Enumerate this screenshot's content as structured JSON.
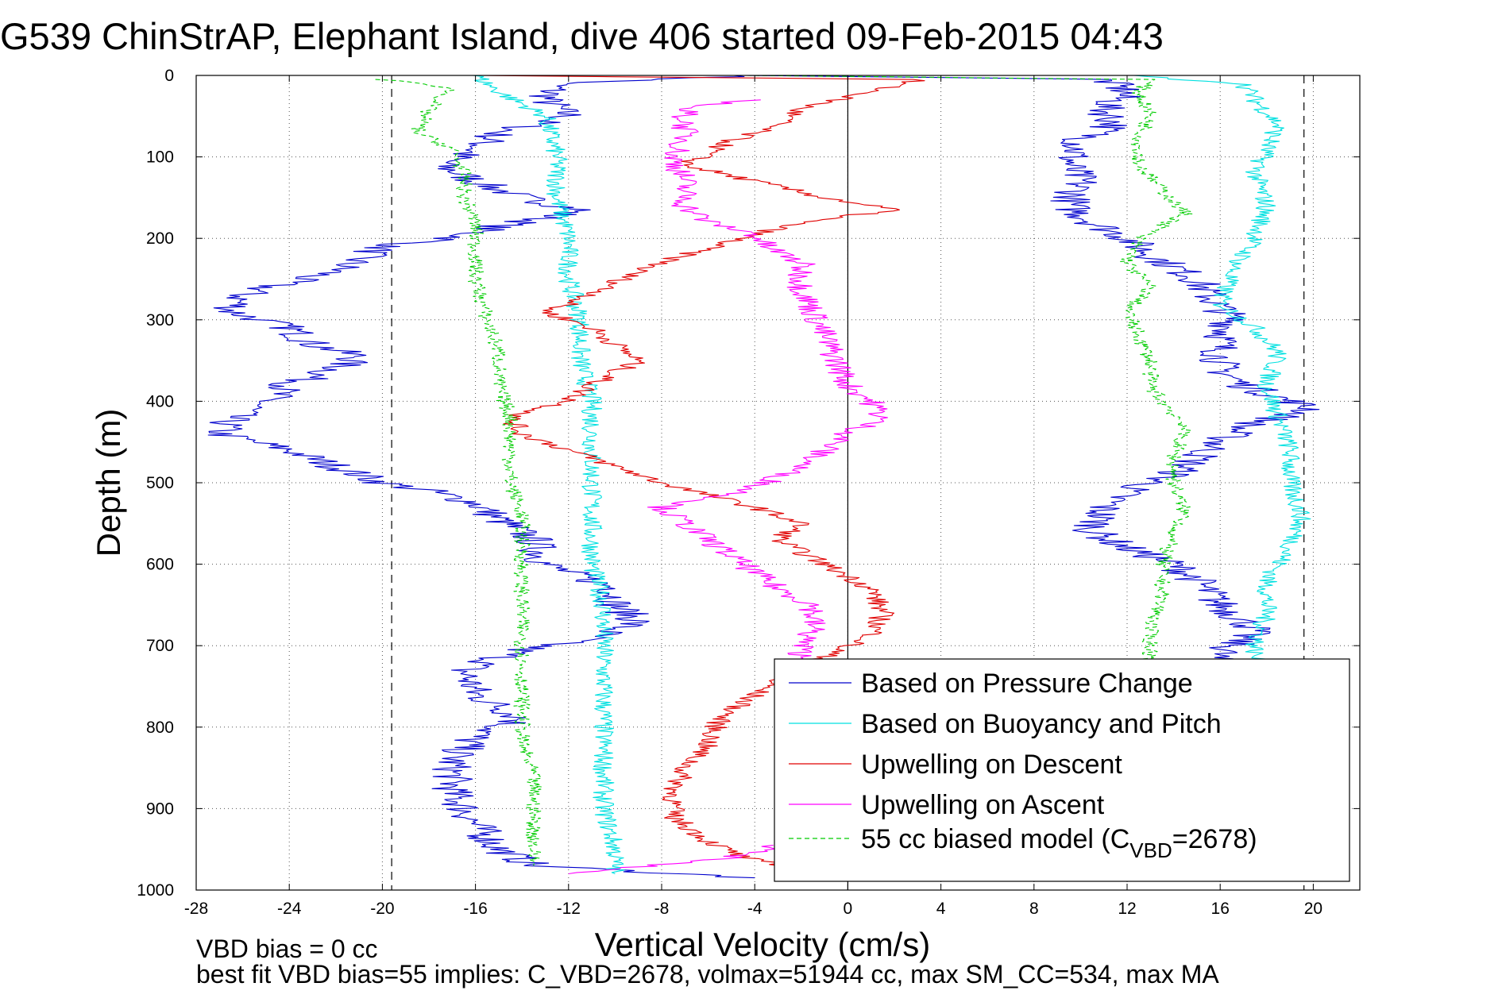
{
  "chart_data": {
    "type": "line",
    "title": "G539 ChinStrAP, Elephant Island, dive 406 started 09-Feb-2015 04:43",
    "xlabel": "Vertical Velocity (cm/s)",
    "ylabel": "Depth (m)",
    "xlim": [
      -28,
      22
    ],
    "ylim": [
      0,
      1000
    ],
    "y_reversed": true,
    "grid": "dotted",
    "x_ticks": [
      -28,
      -24,
      -20,
      -16,
      -12,
      -8,
      -4,
      0,
      4,
      8,
      12,
      16,
      20
    ],
    "y_ticks": [
      0,
      100,
      200,
      300,
      400,
      500,
      600,
      700,
      800,
      900,
      1000
    ],
    "reference_lines": {
      "vertical_solid": 0,
      "vertical_dashed": [
        -19.6,
        19.6
      ]
    },
    "legend_position": "bottom-right",
    "footnotes": [
      "VBD bias = 0 cc",
      "best fit VBD bias=55 implies: C_VBD=2678, volmax=51944 cc, max SM_CC=534, max MA"
    ],
    "series": [
      {
        "name": "Based on Pressure Change",
        "color": "#0000cc",
        "segments": [
          [
            [
              -4,
              0
            ],
            [
              -12.5,
              10
            ],
            [
              -13,
              30
            ],
            [
              -12,
              50
            ],
            [
              -15,
              70
            ],
            [
              -16,
              90
            ],
            [
              -17.5,
              110
            ],
            [
              -16,
              130
            ],
            [
              -14,
              150
            ],
            [
              -11.5,
              165
            ],
            [
              -13,
              175
            ],
            [
              -15,
              185
            ],
            [
              -17,
              200
            ],
            [
              -20,
              210
            ],
            [
              -22,
              240
            ],
            [
              -25,
              260
            ],
            [
              -26,
              270
            ],
            [
              -26.5,
              290
            ],
            [
              -24,
              310
            ],
            [
              -23,
              330
            ],
            [
              -21,
              345
            ],
            [
              -22,
              360
            ],
            [
              -24,
              380
            ],
            [
              -25,
              400
            ],
            [
              -26.5,
              420
            ],
            [
              -27,
              440
            ],
            [
              -24,
              460
            ],
            [
              -22,
              480
            ],
            [
              -20,
              500
            ],
            [
              -18,
              510
            ],
            [
              -16,
              525
            ],
            [
              -15,
              545
            ],
            [
              -13.5,
              570
            ],
            [
              -13,
              600
            ],
            [
              -11.5,
              615
            ],
            [
              -10,
              630
            ],
            [
              -10,
              650
            ],
            [
              -9,
              670
            ],
            [
              -11,
              690
            ],
            [
              -14,
              705
            ],
            [
              -16.5,
              730
            ],
            [
              -16,
              760
            ],
            [
              -14,
              790
            ],
            [
              -16,
              810
            ],
            [
              -17,
              840
            ],
            [
              -17,
              880
            ],
            [
              -16,
              920
            ],
            [
              -15,
              950
            ],
            [
              -13.5,
              970
            ],
            [
              -4,
              985
            ]
          ],
          [
            [
              -4,
              0
            ],
            [
              11,
              5
            ],
            [
              12,
              20
            ],
            [
              11,
              40
            ],
            [
              11.5,
              60
            ],
            [
              10,
              80
            ],
            [
              9.5,
              110
            ],
            [
              10,
              130
            ],
            [
              9.5,
              160
            ],
            [
              10.5,
              180
            ],
            [
              12,
              200
            ],
            [
              13,
              220
            ],
            [
              15,
              250
            ],
            [
              15.5,
              270
            ],
            [
              16.5,
              300
            ],
            [
              16,
              330
            ],
            [
              16,
              360
            ],
            [
              17,
              380
            ],
            [
              19,
              400
            ],
            [
              20,
              410
            ],
            [
              17,
              430
            ],
            [
              15.5,
              460
            ],
            [
              14,
              490
            ],
            [
              12,
              510
            ],
            [
              11,
              530
            ],
            [
              10.5,
              560
            ],
            [
              12,
              580
            ],
            [
              14,
              600
            ],
            [
              15,
              620
            ],
            [
              16,
              650
            ],
            [
              17.5,
              680
            ],
            [
              16,
              710
            ],
            [
              15,
              730
            ]
          ]
        ]
      },
      {
        "name": "Based on Buoyancy and Pitch",
        "color": "#00e0e0",
        "segments": [
          [
            [
              -16,
              0
            ],
            [
              -15,
              20
            ],
            [
              -13,
              50
            ],
            [
              -12.5,
              100
            ],
            [
              -12.5,
              150
            ],
            [
              -12,
              200
            ],
            [
              -12,
              250
            ],
            [
              -11.5,
              300
            ],
            [
              -11.5,
              350
            ],
            [
              -11,
              400
            ],
            [
              -11,
              450
            ],
            [
              -11,
              500
            ],
            [
              -11,
              550
            ],
            [
              -11,
              600
            ],
            [
              -10.5,
              650
            ],
            [
              -10.5,
              700
            ],
            [
              -10.5,
              750
            ],
            [
              -10.5,
              800
            ],
            [
              -10.5,
              850
            ],
            [
              -10.5,
              900
            ],
            [
              -10,
              950
            ],
            [
              -10,
              980
            ]
          ],
          [
            [
              12,
              0
            ],
            [
              17,
              10
            ],
            [
              17.5,
              30
            ],
            [
              18.5,
              60
            ],
            [
              18,
              90
            ],
            [
              17.5,
              120
            ],
            [
              18,
              160
            ],
            [
              17.5,
              200
            ],
            [
              16.5,
              240
            ],
            [
              16,
              280
            ],
            [
              17.5,
              310
            ],
            [
              18.5,
              340
            ],
            [
              18,
              380
            ],
            [
              18.5,
              420
            ],
            [
              19,
              460
            ],
            [
              19,
              500
            ],
            [
              19.5,
              540
            ],
            [
              19,
              580
            ],
            [
              18,
              620
            ],
            [
              18,
              660
            ],
            [
              17.5,
              700
            ],
            [
              17.5,
              730
            ]
          ]
        ]
      },
      {
        "name": "Upwelling on Descent",
        "color": "#e00000",
        "segments": [
          [
            [
              -16,
              0
            ],
            [
              3,
              5
            ],
            [
              1,
              20
            ],
            [
              -2,
              40
            ],
            [
              -3,
              60
            ],
            [
              -5,
              80
            ],
            [
              -7,
              110
            ],
            [
              -4,
              130
            ],
            [
              -1,
              150
            ],
            [
              2,
              165
            ],
            [
              -2,
              180
            ],
            [
              -4,
              195
            ],
            [
              -7,
              220
            ],
            [
              -9,
              240
            ],
            [
              -11,
              270
            ],
            [
              -13,
              290
            ],
            [
              -11,
              310
            ],
            [
              -10,
              330
            ],
            [
              -9,
              350
            ],
            [
              -11,
              380
            ],
            [
              -12,
              400
            ],
            [
              -14.5,
              420
            ],
            [
              -14,
              440
            ],
            [
              -12,
              460
            ],
            [
              -10,
              480
            ],
            [
              -8,
              500
            ],
            [
              -6,
              515
            ],
            [
              -4,
              530
            ],
            [
              -2,
              550
            ],
            [
              -3,
              570
            ],
            [
              -1,
              600
            ],
            [
              1,
              630
            ],
            [
              1.5,
              660
            ],
            [
              1,
              690
            ],
            [
              0,
              700
            ],
            [
              -1.5,
              720
            ],
            [
              -3,
              740
            ],
            [
              -4,
              760
            ],
            [
              -5.5,
              790
            ],
            [
              -6,
              820
            ],
            [
              -7,
              850
            ],
            [
              -7.5,
              880
            ],
            [
              -7.5,
              910
            ],
            [
              -6,
              940
            ],
            [
              -4.5,
              960
            ],
            [
              -3,
              970
            ]
          ]
        ]
      },
      {
        "name": "Upwelling on Ascent",
        "color": "#ff00ff",
        "segments": [
          [
            [
              -4,
              30
            ],
            [
              -7,
              40
            ],
            [
              -7,
              60
            ],
            [
              -7,
              80
            ],
            [
              -7.5,
              100
            ],
            [
              -7,
              130
            ],
            [
              -7,
              160
            ],
            [
              -6,
              180
            ],
            [
              -4,
              195
            ],
            [
              -3.5,
              210
            ],
            [
              -2,
              230
            ],
            [
              -2,
              260
            ],
            [
              -1.5,
              290
            ],
            [
              -1,
              320
            ],
            [
              -0.5,
              350
            ],
            [
              0,
              380
            ],
            [
              1,
              400
            ],
            [
              1.5,
              420
            ],
            [
              0,
              440
            ],
            [
              -1,
              460
            ],
            [
              -2,
              480
            ],
            [
              -3.5,
              500
            ],
            [
              -5,
              515
            ],
            [
              -8,
              530
            ],
            [
              -7,
              550
            ],
            [
              -6,
              570
            ],
            [
              -5,
              590
            ],
            [
              -4,
              610
            ],
            [
              -3,
              630
            ],
            [
              -1.5,
              650
            ],
            [
              -1.5,
              680
            ],
            [
              -2,
              700
            ],
            [
              -2,
              720
            ]
          ],
          [
            [
              -3,
              945
            ],
            [
              -5,
              960
            ],
            [
              -12,
              980
            ]
          ]
        ]
      },
      {
        "name": "55 cc biased model (C_VBD=2678)",
        "color": "#00cc00",
        "dashed": true,
        "segments": [
          [
            [
              -20,
              5
            ],
            [
              -17,
              15
            ],
            [
              -18,
              40
            ],
            [
              -18.5,
              70
            ],
            [
              -17,
              90
            ],
            [
              -16.5,
              120
            ],
            [
              -16.5,
              150
            ],
            [
              -16,
              180
            ],
            [
              -16,
              200
            ],
            [
              -16,
              250
            ],
            [
              -15.5,
              300
            ],
            [
              -15,
              340
            ],
            [
              -15,
              380
            ],
            [
              -14.5,
              420
            ],
            [
              -14.5,
              460
            ],
            [
              -14.5,
              500
            ],
            [
              -14,
              540
            ],
            [
              -14,
              580
            ],
            [
              -14,
              620
            ],
            [
              -14,
              660
            ],
            [
              -14,
              700
            ],
            [
              -14,
              740
            ],
            [
              -14,
              780
            ],
            [
              -14,
              820
            ],
            [
              -13.5,
              860
            ],
            [
              -13.5,
              900
            ],
            [
              -13.5,
              940
            ],
            [
              -13.5,
              970
            ]
          ],
          [
            [
              -4,
              0
            ],
            [
              13,
              5
            ],
            [
              12.5,
              20
            ],
            [
              13,
              50
            ],
            [
              12.5,
              80
            ],
            [
              12.5,
              110
            ],
            [
              13.5,
              140
            ],
            [
              14.5,
              170
            ],
            [
              12.5,
              200
            ],
            [
              12,
              230
            ],
            [
              13,
              260
            ],
            [
              12,
              290
            ],
            [
              12.5,
              320
            ],
            [
              13,
              350
            ],
            [
              13,
              380
            ],
            [
              13.5,
              400
            ],
            [
              14.5,
              430
            ],
            [
              14,
              470
            ],
            [
              14,
              500
            ],
            [
              14.5,
              540
            ],
            [
              14,
              560
            ],
            [
              13.5,
              600
            ],
            [
              13.5,
              640
            ],
            [
              13,
              680
            ],
            [
              13,
              730
            ]
          ]
        ]
      }
    ]
  }
}
